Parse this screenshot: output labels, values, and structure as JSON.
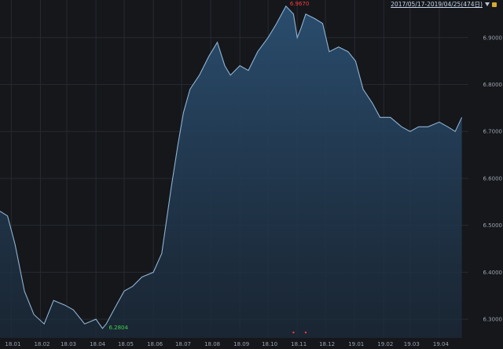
{
  "header": {
    "range_label": "2017/05/17-2019/04/25(474日)",
    "accent": "#d8a932"
  },
  "colors": {
    "background": "#15171b",
    "grid": "#262a30",
    "line": "#8fb3d3",
    "fill_top": "#2a4d6e",
    "fill_bottom": "#1b2a3a",
    "high_label": "#ff3b3b",
    "low_label": "#3fd24a"
  },
  "chart_data": {
    "type": "area",
    "x": [
      "2017-12-20",
      "2017-12-28",
      "2018-01-05",
      "2018-01-15",
      "2018-01-25",
      "2018-02-05",
      "2018-02-15",
      "2018-02-27",
      "2018-03-08",
      "2018-03-20",
      "2018-04-01",
      "2018-04-08",
      "2018-04-12",
      "2018-04-20",
      "2018-05-01",
      "2018-05-10",
      "2018-05-20",
      "2018-06-01",
      "2018-06-10",
      "2018-06-20",
      "2018-06-27",
      "2018-07-03",
      "2018-07-10",
      "2018-07-20",
      "2018-07-30",
      "2018-08-08",
      "2018-08-16",
      "2018-08-22",
      "2018-09-01",
      "2018-09-10",
      "2018-09-20",
      "2018-10-01",
      "2018-10-10",
      "2018-10-20",
      "2018-10-28",
      "2018-11-01",
      "2018-11-05",
      "2018-11-10",
      "2018-11-20",
      "2018-11-28",
      "2018-12-05",
      "2018-12-15",
      "2018-12-25",
      "2019-01-02",
      "2019-01-10",
      "2019-01-20",
      "2019-01-28",
      "2019-02-08",
      "2019-02-20",
      "2019-03-01",
      "2019-03-10",
      "2019-03-20",
      "2019-04-01",
      "2019-04-10",
      "2019-04-18",
      "2019-04-25"
    ],
    "y": [
      6.53,
      6.52,
      6.46,
      6.36,
      6.31,
      6.29,
      6.34,
      6.33,
      6.32,
      6.29,
      6.3,
      6.2804,
      6.29,
      6.32,
      6.36,
      6.37,
      6.39,
      6.4,
      6.44,
      6.58,
      6.67,
      6.74,
      6.79,
      6.82,
      6.86,
      6.89,
      6.84,
      6.82,
      6.84,
      6.83,
      6.87,
      6.9,
      6.93,
      6.967,
      6.95,
      6.9,
      6.92,
      6.95,
      6.94,
      6.93,
      6.87,
      6.88,
      6.87,
      6.85,
      6.79,
      6.76,
      6.73,
      6.73,
      6.71,
      6.7,
      6.71,
      6.71,
      6.72,
      6.71,
      6.7,
      6.73
    ],
    "ylim": [
      6.26,
      6.98
    ],
    "yticks": [
      "6.3000",
      "6.4000",
      "6.5000",
      "6.6000",
      "6.7000",
      "6.8000",
      "6.9000"
    ],
    "xticks": [
      {
        "date": "2018-01-01",
        "label": "18.01"
      },
      {
        "date": "2018-02-01",
        "label": "18.02"
      },
      {
        "date": "2018-03-01",
        "label": "18.03"
      },
      {
        "date": "2018-04-01",
        "label": "18.04"
      },
      {
        "date": "2018-05-01",
        "label": "18.05"
      },
      {
        "date": "2018-06-01",
        "label": "18.06"
      },
      {
        "date": "2018-07-01",
        "label": "18.07"
      },
      {
        "date": "2018-08-01",
        "label": "18.08"
      },
      {
        "date": "2018-09-01",
        "label": "18.09"
      },
      {
        "date": "2018-10-01",
        "label": "18.10"
      },
      {
        "date": "2018-11-01",
        "label": "18.11"
      },
      {
        "date": "2018-12-01",
        "label": "18.12"
      },
      {
        "date": "2019-01-01",
        "label": "19.01"
      },
      {
        "date": "2019-02-01",
        "label": "19.02"
      },
      {
        "date": "2019-03-01",
        "label": "19.03"
      },
      {
        "date": "2019-04-01",
        "label": "19.04"
      }
    ],
    "annotations": [
      {
        "date": "2018-10-20",
        "value": 6.967,
        "label": "6.9670",
        "kind": "high"
      },
      {
        "date": "2018-04-08",
        "value": 6.2804,
        "label": "6.2804",
        "kind": "low"
      }
    ],
    "markers": [
      "2018-10-28",
      "2018-11-10"
    ],
    "grid": true
  }
}
